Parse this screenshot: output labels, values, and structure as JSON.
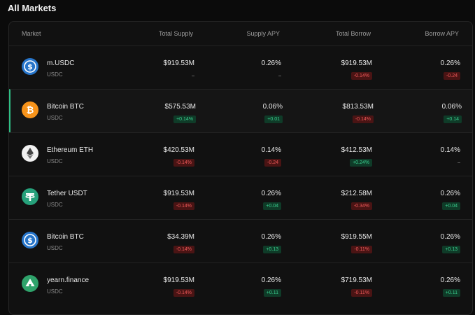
{
  "header": {
    "title": "All Markets"
  },
  "table": {
    "columns": [
      "Market",
      "Total Supply",
      "Supply APY",
      "Total Borrow",
      "Borrow APY"
    ],
    "rows": [
      {
        "name": "m.USDC",
        "sub": "USDC",
        "total_supply": "$919.53M",
        "supply_change": "–",
        "supply_apy": "0.26%",
        "supply_apy_change": "–",
        "total_borrow": "$919.53M",
        "borrow_change": "-0.14%",
        "borrow_apy": "0.26%",
        "borrow_apy_change": "-0.24"
      },
      {
        "name": "Bitcoin BTC",
        "sub": "USDC",
        "total_supply": "$575.53M",
        "supply_change": "+0.14%",
        "supply_apy": "0.06%",
        "supply_apy_change": "+0.01",
        "total_borrow": "$813.53M",
        "borrow_change": "-0.14%",
        "borrow_apy": "0.06%",
        "borrow_apy_change": "+0.14"
      },
      {
        "name": "Ethereum ETH",
        "sub": "USDC",
        "total_supply": "$420.53M",
        "supply_change": "-0.14%",
        "supply_apy": "0.14%",
        "supply_apy_change": "-0.24",
        "total_borrow": "$412.53M",
        "borrow_change": "+0.24%",
        "borrow_apy": "0.14%",
        "borrow_apy_change": "–"
      },
      {
        "name": "Tether USDT",
        "sub": "USDC",
        "total_supply": "$919.53M",
        "supply_change": "-0.14%",
        "supply_apy": "0.26%",
        "supply_apy_change": "+0.04",
        "total_borrow": "$212.58M",
        "borrow_change": "-0.34%",
        "borrow_apy": "0.26%",
        "borrow_apy_change": "+0.04"
      },
      {
        "name": "Bitcoin BTC",
        "sub": "USDC",
        "total_supply": "$34.39M",
        "supply_change": "-0.14%",
        "supply_apy": "0.26%",
        "supply_apy_change": "+0.13",
        "total_borrow": "$919.55M",
        "borrow_change": "-0.11%",
        "borrow_apy": "0.26%",
        "borrow_apy_change": "+0.13"
      },
      {
        "name": "yearn.finance",
        "sub": "USDC",
        "total_supply": "$919.53M",
        "supply_change": "-0.14%",
        "supply_apy": "0.26%",
        "supply_apy_change": "+0.11",
        "total_borrow": "$719.53M",
        "borrow_change": "-0.11%",
        "borrow_apy": "0.26%",
        "borrow_apy_change": "+0.11"
      }
    ]
  }
}
